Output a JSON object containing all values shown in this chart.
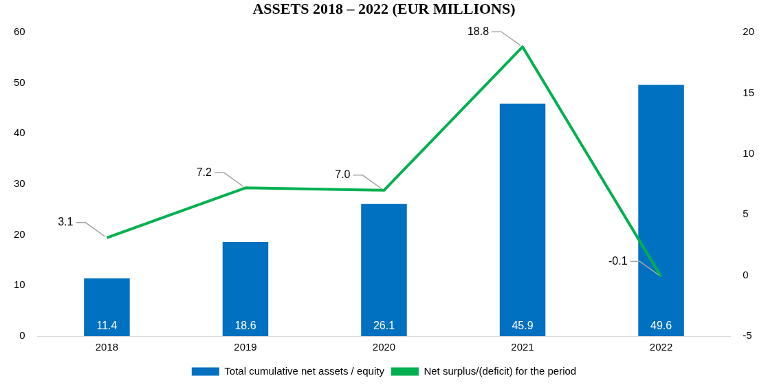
{
  "chart_data": {
    "type": "bar",
    "title": "ASSETS 2018 – 2022 (EUR MILLIONS)",
    "categories": [
      "2018",
      "2019",
      "2020",
      "2021",
      "2022"
    ],
    "series": [
      {
        "name": "Total cumulative net assets / equity",
        "color": "#0070c0",
        "values": [
          11.4,
          18.6,
          26.1,
          45.9,
          49.6
        ],
        "value_labels": [
          "11.4",
          "18.6",
          "26.1",
          "45.9",
          "49.6"
        ]
      },
      {
        "name": "Net surplus/(deficit) for the period",
        "type": "line",
        "axis": "y2",
        "color": "#00b050",
        "values": [
          3.1,
          7.2,
          7.0,
          18.8,
          -0.1
        ],
        "value_labels": [
          "3.1",
          "7.2",
          "7.0",
          "18.8",
          "-0.1"
        ]
      }
    ],
    "ylim": [
      0,
      60
    ],
    "yticks": [
      0,
      10,
      20,
      30,
      40,
      50,
      60
    ],
    "y2lim": [
      -5,
      20
    ],
    "y2ticks": [
      -5,
      0,
      5,
      10,
      15,
      20
    ],
    "grid": false,
    "legend": "bottom",
    "marker": "none",
    "line_style": "solid"
  }
}
